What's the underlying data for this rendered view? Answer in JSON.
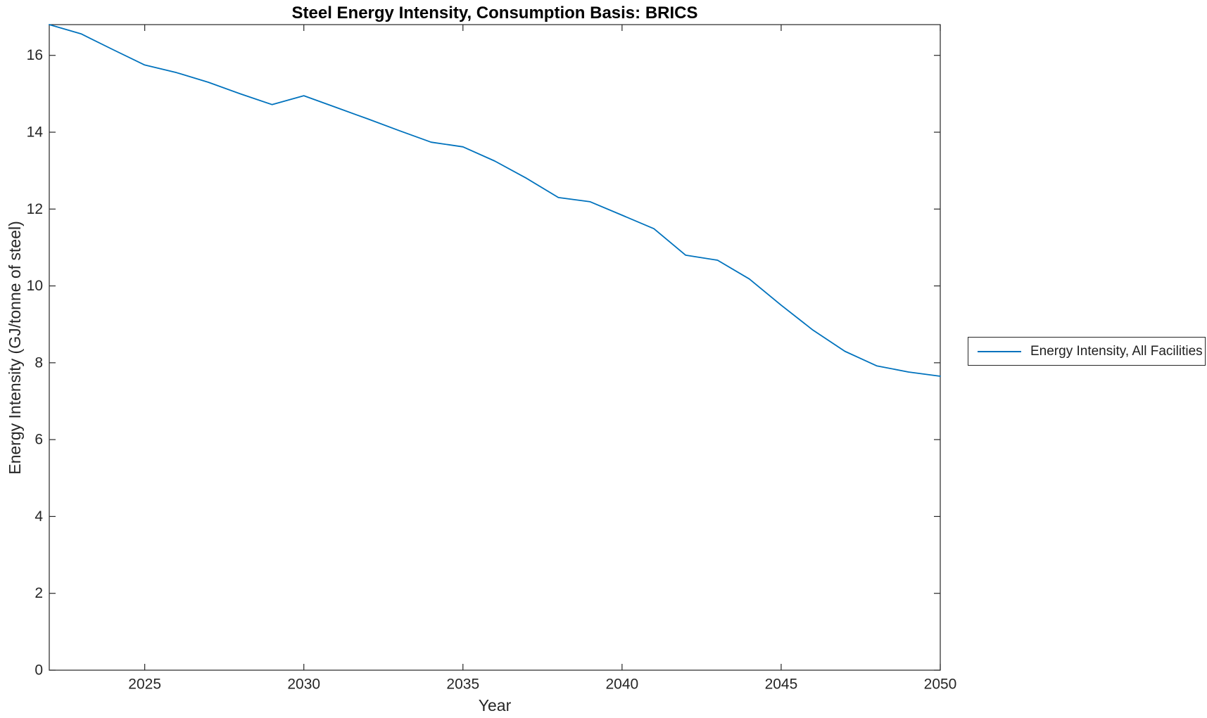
{
  "window": {
    "background": "#ffffff"
  },
  "style": {
    "line_color": "#0072BD",
    "axis_color": "#262626",
    "text_color": "#262626",
    "title_color": "#000000"
  },
  "chart_data": {
    "type": "line",
    "title": "Steel Energy Intensity, Consumption Basis: BRICS",
    "xlabel": "Year",
    "ylabel": "Energy Intensity (GJ/tonne of steel)",
    "xlim": [
      2022,
      2050
    ],
    "ylim": [
      0,
      16.8
    ],
    "xticks": [
      2025,
      2030,
      2035,
      2040,
      2045,
      2050
    ],
    "yticks": [
      0,
      2,
      4,
      6,
      8,
      10,
      12,
      14,
      16
    ],
    "grid": false,
    "box": true,
    "tick_direction": "in",
    "legend": {
      "position": "outside-right",
      "border": true,
      "entries": [
        {
          "label": "Energy Intensity, All Facilities",
          "color": "#0072BD"
        }
      ]
    },
    "series": [
      {
        "name": "Energy Intensity, All Facilities",
        "color": "#0072BD",
        "x": [
          2022,
          2023,
          2024,
          2025,
          2026,
          2027,
          2028,
          2029,
          2030,
          2031,
          2032,
          2033,
          2034,
          2035,
          2036,
          2037,
          2038,
          2039,
          2040,
          2041,
          2042,
          2043,
          2044,
          2045,
          2046,
          2047,
          2048,
          2049,
          2050
        ],
        "y": [
          16.8,
          16.56,
          16.15,
          15.75,
          15.55,
          15.3,
          15.0,
          14.72,
          14.95,
          14.65,
          14.35,
          14.04,
          13.74,
          13.62,
          13.25,
          12.8,
          12.3,
          12.19,
          11.84,
          11.49,
          10.8,
          10.67,
          10.18,
          9.5,
          8.85,
          8.3,
          7.92,
          7.76,
          7.65
        ]
      }
    ]
  }
}
